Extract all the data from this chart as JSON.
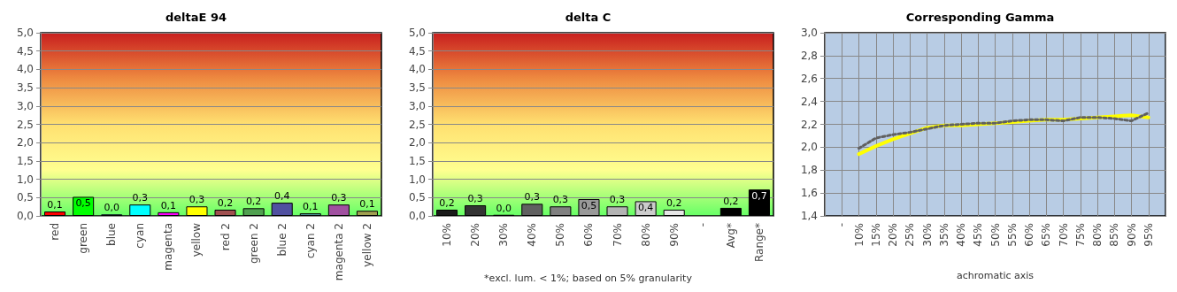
{
  "chart_data": [
    {
      "type": "bar",
      "title": "deltaE 94",
      "categories": [
        "red",
        "green",
        "blue",
        "cyan",
        "magenta",
        "yellow",
        "red 2",
        "green 2",
        "blue 2",
        "cyan 2",
        "magenta 2",
        "yellow 2"
      ],
      "values": [
        0.12,
        0.52,
        0.04,
        0.31,
        0.1,
        0.26,
        0.17,
        0.21,
        0.36,
        0.07,
        0.31,
        0.14
      ],
      "value_labels": [
        "0,1",
        "0,5",
        "0,0",
        "0,3",
        "0,1",
        "0,3",
        "0,2",
        "0,2",
        "0,4",
        "0,1",
        "0,3",
        "0,1"
      ],
      "colors": [
        "#ff0000",
        "#00ff00",
        "#0000ff",
        "#00ffff",
        "#ff00ff",
        "#ffff00",
        "#a05050",
        "#50a050",
        "#5050a0",
        "#50a0a0",
        "#a050a0",
        "#a0a050"
      ],
      "ylim": [
        0,
        5
      ],
      "yticks": [
        {
          "value": 0,
          "label": "0,0"
        },
        {
          "value": 0.5,
          "label": "0,5"
        },
        {
          "value": 1,
          "label": "1,0"
        },
        {
          "value": 1.5,
          "label": "1,5"
        },
        {
          "value": 2,
          "label": "2,0"
        },
        {
          "value": 2.5,
          "label": "2,5"
        },
        {
          "value": 3,
          "label": "3,0"
        },
        {
          "value": 3.5,
          "label": "3,5"
        },
        {
          "value": 4,
          "label": "4,0"
        },
        {
          "value": 4.5,
          "label": "4,5"
        },
        {
          "value": 5,
          "label": "5,0"
        }
      ],
      "grid": "y"
    },
    {
      "type": "bar",
      "title": "delta C",
      "categories": [
        "10%",
        "20%",
        "30%",
        "40%",
        "50%",
        "60%",
        "70%",
        "80%",
        "90%",
        "-",
        "Avg*",
        "Range*"
      ],
      "values": [
        0.17,
        0.29,
        0.03,
        0.33,
        0.26,
        0.46,
        0.26,
        0.4,
        0.17,
        null,
        0.22,
        0.72
      ],
      "value_labels": [
        "0,2",
        "0,3",
        "0,0",
        "0,3",
        "0,3",
        "0,5",
        "0,3",
        "0,4",
        "0,2",
        null,
        "0,2",
        "0,7"
      ],
      "colors": [
        "#1a1a1a",
        "#333333",
        "#474747",
        "#606060",
        "#808080",
        "#999999",
        "#b3b3b3",
        "#cccccc",
        "#e6e6e6",
        "#000000",
        "#000000",
        "#000000"
      ],
      "ylim": [
        0,
        5
      ],
      "yticks": [
        {
          "value": 0,
          "label": "0,0"
        },
        {
          "value": 0.5,
          "label": "0,5"
        },
        {
          "value": 1,
          "label": "1,0"
        },
        {
          "value": 1.5,
          "label": "1,5"
        },
        {
          "value": 2,
          "label": "2,0"
        },
        {
          "value": 2.5,
          "label": "2,5"
        },
        {
          "value": 3,
          "label": "3,0"
        },
        {
          "value": 3.5,
          "label": "3,5"
        },
        {
          "value": 4,
          "label": "4,0"
        },
        {
          "value": 4.5,
          "label": "4,5"
        },
        {
          "value": 5,
          "label": "5,0"
        }
      ],
      "grid": "y",
      "annotations": [
        "*excl. lum. < 1%; based on 5% granularity"
      ]
    },
    {
      "type": "line",
      "title": "Corresponding Gamma",
      "xlabel": "achromatic axis",
      "categories": [
        null,
        "-",
        "10%",
        "15%",
        "20%",
        "25%",
        "30%",
        "35%",
        "40%",
        "45%",
        "50%",
        "55%",
        "60%",
        "65%",
        "70%",
        "75%",
        "80%",
        "85%",
        "90%",
        "95%",
        null
      ],
      "series": [
        {
          "color": "#ffff00",
          "line_style": "solid",
          "values": [
            null,
            null,
            1.94,
            2.01,
            2.07,
            2.12,
            2.17,
            2.19,
            2.19,
            2.2,
            2.21,
            2.22,
            2.23,
            2.24,
            2.24,
            2.25,
            2.26,
            2.27,
            2.28,
            2.26,
            null
          ]
        },
        {
          "color": "#606060",
          "line_style": "dotted",
          "values": [
            null,
            null,
            1.99,
            2.08,
            2.11,
            2.13,
            2.16,
            2.19,
            2.2,
            2.21,
            2.21,
            2.23,
            2.24,
            2.24,
            2.23,
            2.26,
            2.26,
            2.25,
            2.23,
            2.3,
            null
          ]
        }
      ],
      "ylim": [
        1.4,
        3.0
      ],
      "yticks": [
        {
          "value": 1.4,
          "label": "1,4"
        },
        {
          "value": 1.6,
          "label": "1,6"
        },
        {
          "value": 1.8,
          "label": "1,8"
        },
        {
          "value": 2.0,
          "label": "2,0"
        },
        {
          "value": 2.2,
          "label": "2,2"
        },
        {
          "value": 2.4,
          "label": "2,4"
        },
        {
          "value": 2.6,
          "label": "2,6"
        },
        {
          "value": 2.8,
          "label": "2,8"
        },
        {
          "value": 3.0,
          "label": "3,0"
        }
      ],
      "grid": true,
      "marker": "none"
    }
  ]
}
